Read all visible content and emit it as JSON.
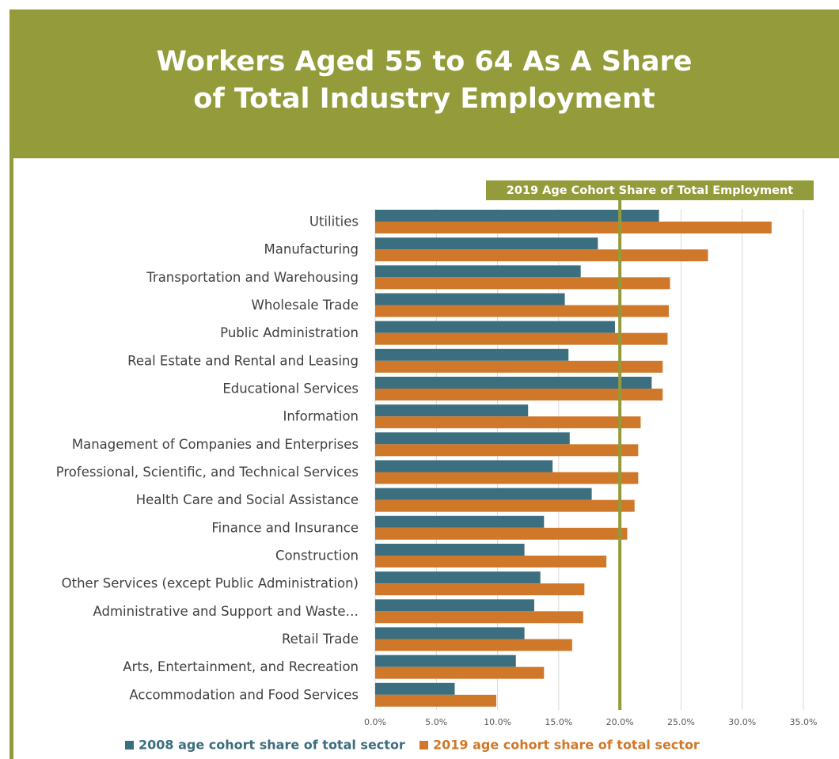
{
  "chart_data": {
    "type": "bar",
    "orientation": "horizontal",
    "title": "Workers Aged 55 to 64 As A Share of Total Industry Employment",
    "categories": [
      "Utilities",
      "Manufacturing",
      "Transportation and Warehousing",
      "Wholesale Trade",
      "Public Administration",
      "Real Estate and Rental and Leasing",
      "Educational Services",
      "Information",
      "Management of Companies and Enterprises",
      "Professional, Scientific, and Technical Services",
      "Health Care and Social Assistance",
      "Finance and Insurance",
      "Construction",
      "Other Services (except Public Administration)",
      "Administrative and Support and Waste…",
      "Retail Trade",
      "Arts, Entertainment, and Recreation",
      "Accommodation and Food Services"
    ],
    "series": [
      {
        "name": "2008 age cohort share of total sector",
        "color": "#3b6e7f",
        "values": [
          23.2,
          18.2,
          16.8,
          15.5,
          19.6,
          15.8,
          22.6,
          12.5,
          15.9,
          14.5,
          17.7,
          13.8,
          12.2,
          13.5,
          13.0,
          12.2,
          11.5,
          6.5
        ]
      },
      {
        "name": "2019 age cohort share of total sector",
        "color": "#d0782a",
        "values": [
          32.4,
          27.2,
          24.1,
          24.0,
          23.9,
          23.5,
          23.5,
          21.7,
          21.5,
          21.5,
          21.2,
          20.6,
          18.9,
          17.1,
          17.0,
          16.1,
          13.8,
          9.9
        ]
      }
    ],
    "xlim": [
      0,
      35
    ],
    "xticks": [
      {
        "value": 0,
        "label": "0.0%"
      },
      {
        "value": 5,
        "label": "5.0%"
      },
      {
        "value": 10,
        "label": "10.0%"
      },
      {
        "value": 15,
        "label": "15.0%"
      },
      {
        "value": 20,
        "label": "20.0%"
      },
      {
        "value": 25,
        "label": "25.0%"
      },
      {
        "value": 30,
        "label": "30.0%"
      },
      {
        "value": 35,
        "label": "35.0%"
      }
    ],
    "grid": true,
    "legend": "bottom",
    "reference_line": {
      "value": 20,
      "label": "2019 Age Cohort Share of Total Employment",
      "color": "#939b3a"
    }
  }
}
